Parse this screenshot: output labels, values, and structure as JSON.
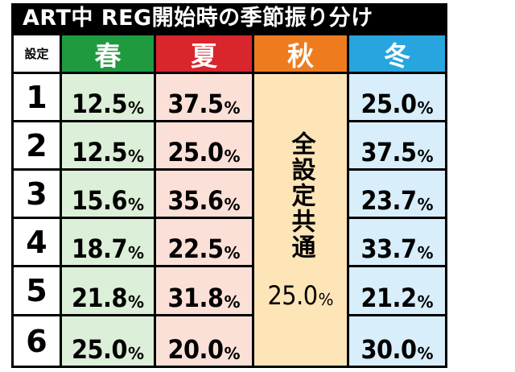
{
  "title": "ART中 REG開始時の季節振り分け",
  "headers": {
    "setting": "設定",
    "spring": "春",
    "summer": "夏",
    "autumn": "秋",
    "winter": "冬"
  },
  "colors": {
    "spring_header": "#1f9a3f",
    "summer_header": "#d9252c",
    "autumn_header": "#ee7c1f",
    "winter_header": "#27a5de",
    "spring_cell": "#dcefd8",
    "summer_cell": "#fbe0d8",
    "autumn_cell": "#fde5b8",
    "winter_cell": "#d8eefa"
  },
  "autumn_note": "全設定共通",
  "autumn_value": "25.0",
  "percent_sign": "%",
  "rows": [
    {
      "setting": "1",
      "spring": "12.5",
      "summer": "37.5",
      "winter": "25.0"
    },
    {
      "setting": "2",
      "spring": "12.5",
      "summer": "25.0",
      "winter": "37.5"
    },
    {
      "setting": "3",
      "spring": "15.6",
      "summer": "35.6",
      "winter": "23.7"
    },
    {
      "setting": "4",
      "spring": "18.7",
      "summer": "22.5",
      "winter": "33.7"
    },
    {
      "setting": "5",
      "spring": "21.8",
      "summer": "31.8",
      "winter": "21.2"
    },
    {
      "setting": "6",
      "spring": "25.0",
      "summer": "20.0",
      "winter": "30.0"
    }
  ]
}
